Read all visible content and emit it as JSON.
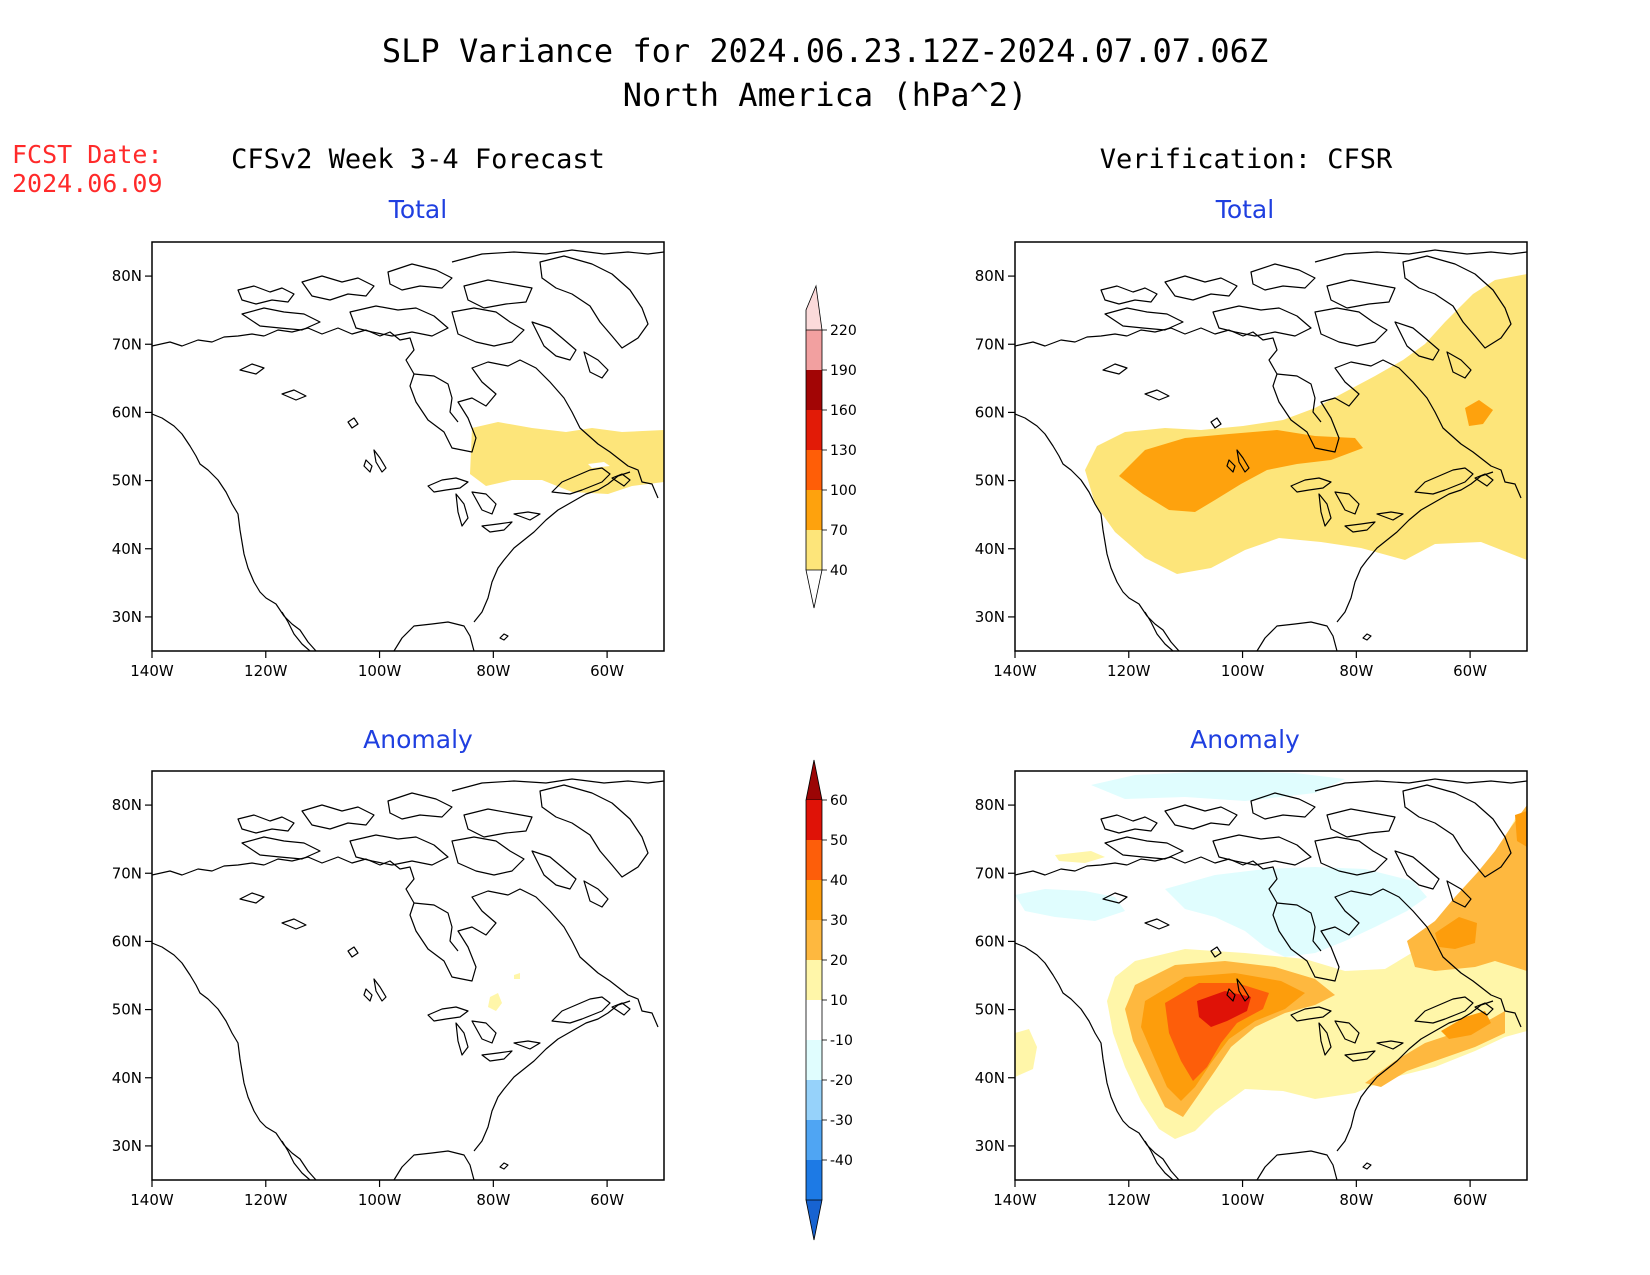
{
  "header": {
    "title_line1": "SLP Variance for 2024.06.23.12Z-2024.07.07.06Z",
    "title_line2": "North America (hPa^2)",
    "fcst_label": "FCST Date:",
    "fcst_date": "2024.06.09",
    "left_column_title": "CFSv2 Week 3-4 Forecast",
    "right_column_title": "Verification: CFSR"
  },
  "panels": [
    {
      "id": "fcst-total",
      "title": "Total"
    },
    {
      "id": "verif-total",
      "title": "Total"
    },
    {
      "id": "fcst-anom",
      "title": "Anomaly"
    },
    {
      "id": "verif-anom",
      "title": "Anomaly"
    }
  ],
  "map": {
    "lon_ticks": [
      "140W",
      "120W",
      "100W",
      "80W",
      "60W"
    ],
    "lat_ticks": [
      "80N",
      "70N",
      "60N",
      "50N",
      "40N",
      "30N"
    ]
  },
  "colorbar_total": {
    "levels": [
      "40",
      "70",
      "100",
      "130",
      "160",
      "190",
      "220"
    ],
    "colors": [
      "#fde57a",
      "#fea20d",
      "#ff5e07",
      "#e21b07",
      "#a20505",
      "#f2a0a0",
      "#fbdada"
    ]
  },
  "colorbar_anomaly": {
    "levels": [
      "60",
      "50",
      "40",
      "30",
      "20",
      "10",
      "-10",
      "-20",
      "-30",
      "-40"
    ],
    "colors_top_down": [
      "#9b0505",
      "#df1207",
      "#fd5e0a",
      "#fd9d0c",
      "#feb83f",
      "#fff6a9",
      "#ffffff",
      "#e0fdfe",
      "#96d2fa",
      "#4fa5f3",
      "#1d7ae5",
      "#1763d1"
    ]
  }
}
